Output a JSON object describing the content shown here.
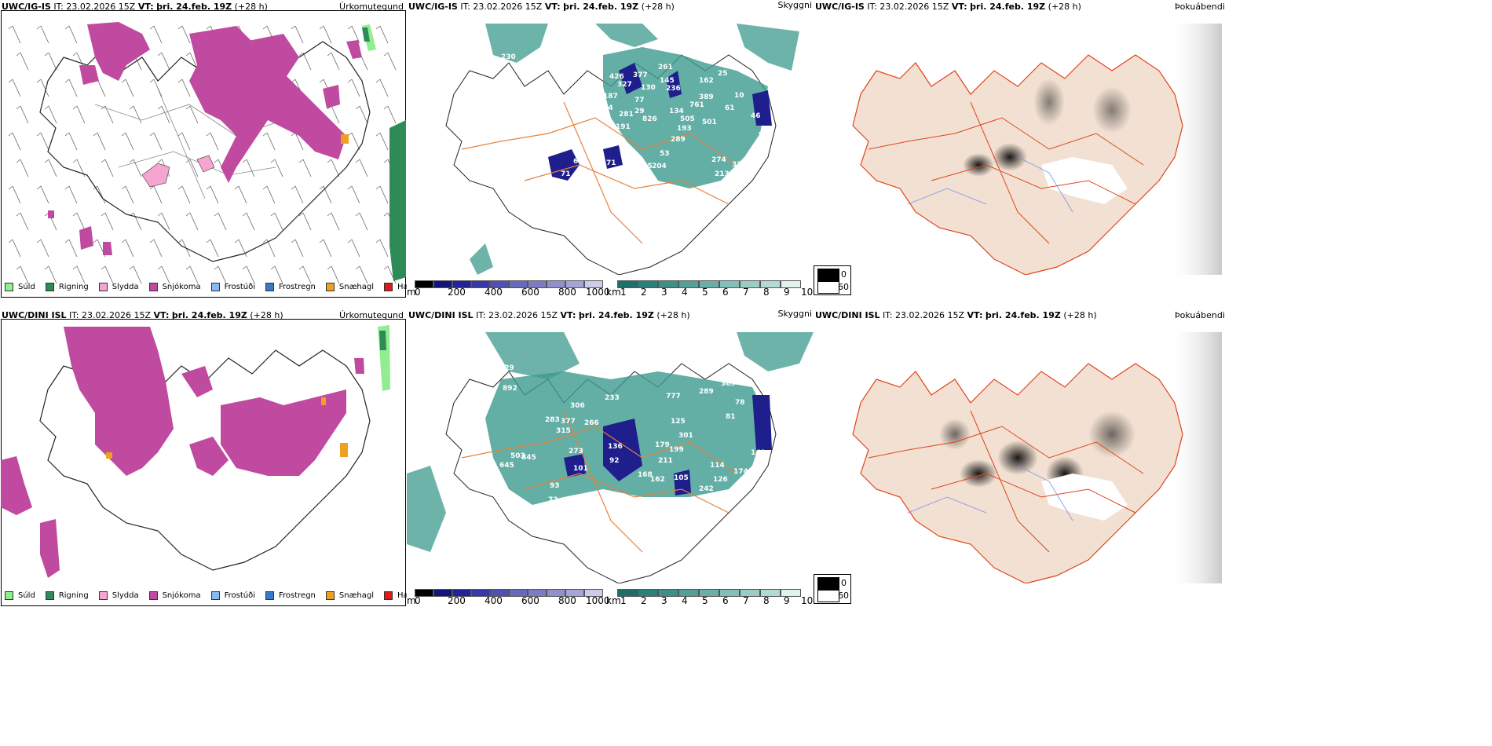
{
  "rows": [
    {
      "model": "UWC/IG-IS",
      "it_label": "IT:",
      "it_value": "23.02.2026 15Z",
      "vt_label": "VT:",
      "vt_value": "þri. 24.feb. 19Z",
      "lead": "(+28 h)",
      "cloud_labels": [
        "230",
        "426",
        "327",
        "377",
        "130",
        "187",
        "261",
        "145",
        "236",
        "162",
        "25",
        "389",
        "761",
        "134",
        "505",
        "193",
        "289",
        "501",
        "61",
        "10",
        "281",
        "191",
        "104",
        "29",
        "77",
        "826",
        "53",
        "274",
        "323",
        "213",
        "204",
        "195",
        "66",
        "71",
        "71",
        "46",
        "76",
        "91"
      ]
    },
    {
      "model": "UWC/DINI ISL",
      "it_label": "IT:",
      "it_value": "23.02.2026 15Z",
      "vt_label": "VT:",
      "vt_value": "þri. 24.feb. 19Z",
      "lead": "(+28 h)",
      "cloud_labels": [
        "229",
        "892",
        "306",
        "233",
        "283",
        "377",
        "315",
        "266",
        "777",
        "289",
        "369",
        "78",
        "81",
        "125",
        "301",
        "179",
        "199",
        "273",
        "101",
        "136",
        "92",
        "503",
        "845",
        "645",
        "211",
        "168",
        "162",
        "105",
        "126",
        "242",
        "114",
        "174",
        "72",
        "235",
        "93",
        "140"
      ]
    }
  ],
  "panel_names": {
    "precip": "Úrkomutegund",
    "cloud": "Skyggni",
    "fog": "Þokuábendi"
  },
  "precip_legend": [
    {
      "label": "Súld",
      "color": "#90ee90"
    },
    {
      "label": "Rigning",
      "color": "#2e8b57"
    },
    {
      "label": "Slydda",
      "color": "#f4a6d0"
    },
    {
      "label": "Snjókoma",
      "color": "#c04aa0"
    },
    {
      "label": "Frostúði",
      "color": "#8ab8f0"
    },
    {
      "label": "Frostregn",
      "color": "#3a78c8"
    },
    {
      "label": "Snæhagl",
      "color": "#f0a020"
    },
    {
      "label": "Haglél",
      "color": "#e01818"
    }
  ],
  "cloud_base_bar": {
    "unit": "m",
    "ticks": [
      "0",
      "200",
      "400",
      "600",
      "800",
      "1000"
    ],
    "colors": [
      "#000000",
      "#14147a",
      "#22229a",
      "#3838a8",
      "#5050b4",
      "#6868bc",
      "#7c7cc4",
      "#9090cc",
      "#a4a4d6",
      "#b8b8de",
      "#ccccea"
    ]
  },
  "visibility_bar": {
    "unit": "km",
    "ticks": [
      "1",
      "2",
      "3",
      "4",
      "5",
      "6",
      "7",
      "8",
      "9",
      "10"
    ],
    "colors": [
      "#1e6e6a",
      "#2a807a",
      "#3c9088",
      "#52a096",
      "#68b0a6",
      "#80c0b6",
      "#98ccc4",
      "#b0dad4",
      "#c8e6e0",
      "#e0f2ee"
    ]
  },
  "fog_legend": {
    "items": [
      {
        "label": "0",
        "color": "#000000"
      },
      {
        "label": "60",
        "color": "#ffffff"
      }
    ]
  },
  "colors": {
    "snow": "#c04aa0",
    "rain": "#2e8b57",
    "drizzle": "#90ee90",
    "sleet": "#f4a6d0",
    "snow_pellets": "#f0a020",
    "roads": "#e8823c",
    "fog_land": "#f2e1d2",
    "fog_roads": "#e0441c",
    "fog_rivers": "#7b8fe8",
    "cloud_teal": "#3c9a8e",
    "cloud_blue": "#1e1e8c"
  }
}
